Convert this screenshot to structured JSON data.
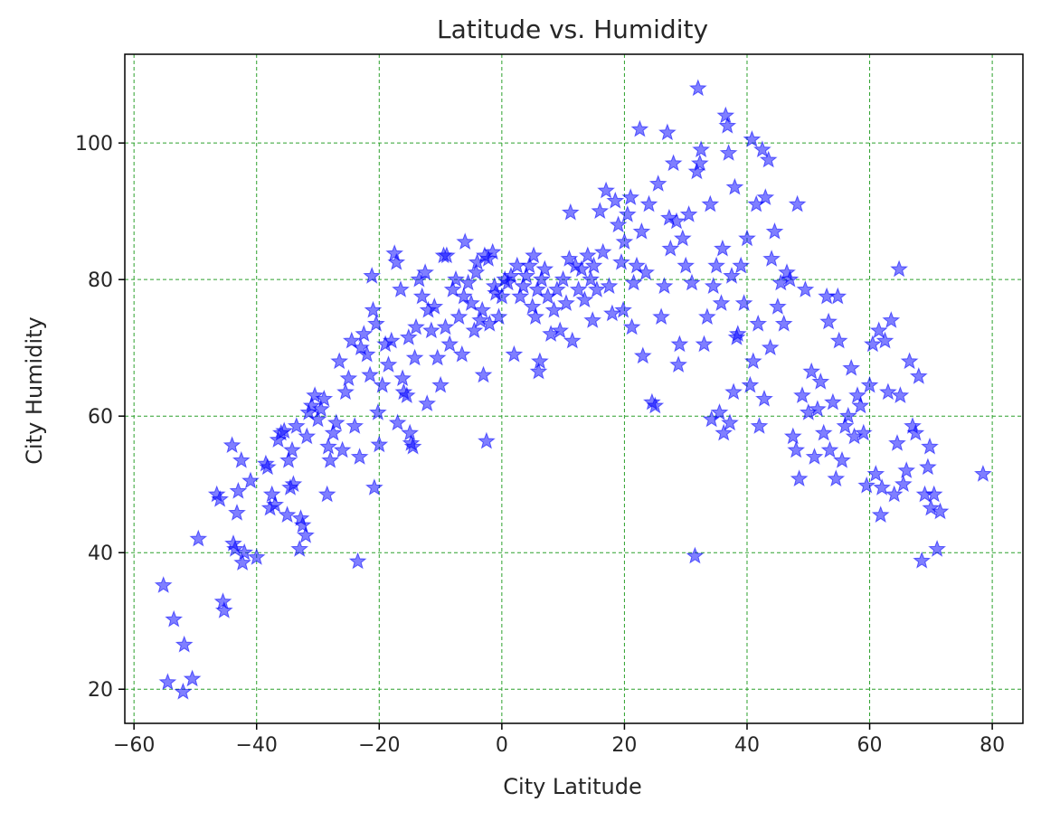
{
  "chart_data": {
    "type": "scatter",
    "title": "Latitude vs. Humidity",
    "xlabel": "City Latitude",
    "ylabel": "City Humidity",
    "xlim": [
      -61.5,
      85
    ],
    "ylim": [
      15,
      113
    ],
    "xticks": [
      -60,
      -40,
      -20,
      0,
      20,
      40,
      60,
      80
    ],
    "yticks": [
      20,
      40,
      60,
      80,
      100
    ],
    "grid": true,
    "marker": "star",
    "colors": {
      "marker": "#0000ff",
      "grid": "#2ca02c",
      "axes": "#000000"
    },
    "points": [
      [
        -55.2,
        35.2
      ],
      [
        -54.5,
        21.0
      ],
      [
        -53.5,
        30.2
      ],
      [
        -52.0,
        19.6
      ],
      [
        -51.8,
        26.5
      ],
      [
        -50.5,
        21.5
      ],
      [
        -49.5,
        42.0
      ],
      [
        -46.5,
        48.5
      ],
      [
        -46.0,
        47.8
      ],
      [
        -45.5,
        32.8
      ],
      [
        -45.3,
        31.5
      ],
      [
        -44.0,
        55.7
      ],
      [
        -43.8,
        41.3
      ],
      [
        -43.5,
        40.5
      ],
      [
        -43.2,
        45.8
      ],
      [
        -43.0,
        49.0
      ],
      [
        -42.5,
        53.5
      ],
      [
        -42.3,
        38.5
      ],
      [
        -42.0,
        40.0
      ],
      [
        -41.0,
        50.5
      ],
      [
        -40.0,
        39.3
      ],
      [
        -38.5,
        53.0
      ],
      [
        -38.2,
        52.5
      ],
      [
        -37.8,
        46.5
      ],
      [
        -37.5,
        48.5
      ],
      [
        -37.0,
        47.0
      ],
      [
        -36.5,
        56.5
      ],
      [
        -36.0,
        57.5
      ],
      [
        -35.5,
        57.8
      ],
      [
        -35.0,
        45.5
      ],
      [
        -34.8,
        53.5
      ],
      [
        -34.5,
        49.5
      ],
      [
        -34.2,
        55.0
      ],
      [
        -34.0,
        50.0
      ],
      [
        -33.5,
        58.5
      ],
      [
        -33.0,
        40.5
      ],
      [
        -32.8,
        45.0
      ],
      [
        -32.5,
        44.0
      ],
      [
        -32.0,
        42.5
      ],
      [
        -31.8,
        57.0
      ],
      [
        -31.5,
        60.5
      ],
      [
        -31.0,
        61.5
      ],
      [
        -30.5,
        63.0
      ],
      [
        -30.0,
        59.5
      ],
      [
        -29.5,
        61.0
      ],
      [
        -29.0,
        62.5
      ],
      [
        -28.5,
        48.5
      ],
      [
        -28.3,
        55.5
      ],
      [
        -28.0,
        53.5
      ],
      [
        -27.5,
        57.5
      ],
      [
        -27.0,
        59.0
      ],
      [
        -26.5,
        68.0
      ],
      [
        -26.0,
        55.0
      ],
      [
        -25.5,
        63.5
      ],
      [
        -25.0,
        65.5
      ],
      [
        -24.5,
        71.0
      ],
      [
        -24.0,
        58.5
      ],
      [
        -23.5,
        38.7
      ],
      [
        -23.2,
        54.0
      ],
      [
        -23.0,
        70.0
      ],
      [
        -22.5,
        72.0
      ],
      [
        -22.0,
        69.0
      ],
      [
        -21.5,
        66.0
      ],
      [
        -21.2,
        80.5
      ],
      [
        -21.0,
        75.5
      ],
      [
        -20.8,
        49.5
      ],
      [
        -20.5,
        73.5
      ],
      [
        -20.2,
        60.5
      ],
      [
        -20.0,
        55.8
      ],
      [
        -19.5,
        64.5
      ],
      [
        -19.0,
        70.5
      ],
      [
        -18.5,
        67.5
      ],
      [
        -18.0,
        71.0
      ],
      [
        -17.5,
        83.8
      ],
      [
        -17.2,
        82.5
      ],
      [
        -17.0,
        59.0
      ],
      [
        -16.5,
        78.5
      ],
      [
        -16.2,
        65.5
      ],
      [
        -16.0,
        63.5
      ],
      [
        -15.5,
        63.0
      ],
      [
        -15.2,
        71.5
      ],
      [
        -15.0,
        57.5
      ],
      [
        -14.8,
        56.0
      ],
      [
        -14.5,
        55.5
      ],
      [
        -14.2,
        68.5
      ],
      [
        -14.0,
        73.0
      ],
      [
        -13.5,
        80.0
      ],
      [
        -13.0,
        77.5
      ],
      [
        -12.5,
        81.0
      ],
      [
        -12.2,
        61.8
      ],
      [
        -12.0,
        75.5
      ],
      [
        -11.5,
        72.5
      ],
      [
        -11.0,
        76.0
      ],
      [
        -10.5,
        68.5
      ],
      [
        -10.0,
        64.5
      ],
      [
        -9.5,
        83.5
      ],
      [
        -9.2,
        73.0
      ],
      [
        -9.0,
        83.5
      ],
      [
        -8.5,
        70.5
      ],
      [
        -8.0,
        78.5
      ],
      [
        -7.5,
        80.0
      ],
      [
        -7.0,
        74.5
      ],
      [
        -6.5,
        69.0
      ],
      [
        -6.2,
        77.5
      ],
      [
        -6.0,
        85.5
      ],
      [
        -5.5,
        79.5
      ],
      [
        -5.0,
        76.5
      ],
      [
        -4.5,
        72.5
      ],
      [
        -4.2,
        81.0
      ],
      [
        -4.0,
        82.5
      ],
      [
        -3.5,
        74.0
      ],
      [
        -3.2,
        75.5
      ],
      [
        -3.0,
        66.0
      ],
      [
        -2.8,
        83.5
      ],
      [
        -2.5,
        56.3
      ],
      [
        -2.2,
        83.0
      ],
      [
        -2.0,
        73.5
      ],
      [
        -1.5,
        84.0
      ],
      [
        -1.2,
        79.0
      ],
      [
        -1.0,
        78.0
      ],
      [
        -0.5,
        74.5
      ],
      [
        0.0,
        77.5
      ],
      [
        0.5,
        80.0
      ],
      [
        1.0,
        79.5
      ],
      [
        1.5,
        80.5
      ],
      [
        2.0,
        69.0
      ],
      [
        2.5,
        82.0
      ],
      [
        3.0,
        77.5
      ],
      [
        3.5,
        79.0
      ],
      [
        4.0,
        80.5
      ],
      [
        4.5,
        82.0
      ],
      [
        5.0,
        76.0
      ],
      [
        5.2,
        83.5
      ],
      [
        5.5,
        74.5
      ],
      [
        5.8,
        78.5
      ],
      [
        6.0,
        66.5
      ],
      [
        6.2,
        68.0
      ],
      [
        6.5,
        80.0
      ],
      [
        7.0,
        81.5
      ],
      [
        7.5,
        77.5
      ],
      [
        8.0,
        72.0
      ],
      [
        8.5,
        75.5
      ],
      [
        9.0,
        78.5
      ],
      [
        9.5,
        72.5
      ],
      [
        10.0,
        80.0
      ],
      [
        10.5,
        76.5
      ],
      [
        11.0,
        83.0
      ],
      [
        11.2,
        89.8
      ],
      [
        11.5,
        71.0
      ],
      [
        12.0,
        82.0
      ],
      [
        12.5,
        78.5
      ],
      [
        13.0,
        81.5
      ],
      [
        13.5,
        77.0
      ],
      [
        14.0,
        83.5
      ],
      [
        14.5,
        80.0
      ],
      [
        14.8,
        74.0
      ],
      [
        15.0,
        82.0
      ],
      [
        15.5,
        78.5
      ],
      [
        16.0,
        90.0
      ],
      [
        16.5,
        84.0
      ],
      [
        17.0,
        93.0
      ],
      [
        17.5,
        79.0
      ],
      [
        18.0,
        75.0
      ],
      [
        18.5,
        91.5
      ],
      [
        19.0,
        88.0
      ],
      [
        19.5,
        82.5
      ],
      [
        19.8,
        75.5
      ],
      [
        20.0,
        85.5
      ],
      [
        20.5,
        89.5
      ],
      [
        21.0,
        92.0
      ],
      [
        21.2,
        73.0
      ],
      [
        21.5,
        79.5
      ],
      [
        22.0,
        82.0
      ],
      [
        22.5,
        102.0
      ],
      [
        22.8,
        87.0
      ],
      [
        23.0,
        68.8
      ],
      [
        23.5,
        81.0
      ],
      [
        24.0,
        91.0
      ],
      [
        24.5,
        62.0
      ],
      [
        25.0,
        61.5
      ],
      [
        25.5,
        94.0
      ],
      [
        26.0,
        74.5
      ],
      [
        26.5,
        79.0
      ],
      [
        27.0,
        101.5
      ],
      [
        27.3,
        89.0
      ],
      [
        27.5,
        84.5
      ],
      [
        28.0,
        97.0
      ],
      [
        28.5,
        88.5
      ],
      [
        28.8,
        67.5
      ],
      [
        29.0,
        70.5
      ],
      [
        29.5,
        86.0
      ],
      [
        30.0,
        82.0
      ],
      [
        30.5,
        89.5
      ],
      [
        31.0,
        79.5
      ],
      [
        31.5,
        39.5
      ],
      [
        31.8,
        95.8
      ],
      [
        32.0,
        108.0
      ],
      [
        32.3,
        97.0
      ],
      [
        32.5,
        99.0
      ],
      [
        33.0,
        70.5
      ],
      [
        33.5,
        74.5
      ],
      [
        34.0,
        91.0
      ],
      [
        34.2,
        59.5
      ],
      [
        34.5,
        79.0
      ],
      [
        35.0,
        82.0
      ],
      [
        35.5,
        60.5
      ],
      [
        35.8,
        76.5
      ],
      [
        36.0,
        84.5
      ],
      [
        36.2,
        57.5
      ],
      [
        36.5,
        104.0
      ],
      [
        36.8,
        102.5
      ],
      [
        37.0,
        98.5
      ],
      [
        37.2,
        59.0
      ],
      [
        37.5,
        80.5
      ],
      [
        37.8,
        63.5
      ],
      [
        38.0,
        93.5
      ],
      [
        38.3,
        71.5
      ],
      [
        38.5,
        72.0
      ],
      [
        39.0,
        82.0
      ],
      [
        39.5,
        76.5
      ],
      [
        40.0,
        86.0
      ],
      [
        40.5,
        64.5
      ],
      [
        40.8,
        100.5
      ],
      [
        41.0,
        68.0
      ],
      [
        41.5,
        91.0
      ],
      [
        41.8,
        73.5
      ],
      [
        42.0,
        58.5
      ],
      [
        42.5,
        99.0
      ],
      [
        42.8,
        62.5
      ],
      [
        43.0,
        92.0
      ],
      [
        43.5,
        97.5
      ],
      [
        43.8,
        70.0
      ],
      [
        44.0,
        83.0
      ],
      [
        44.5,
        87.0
      ],
      [
        45.0,
        76.0
      ],
      [
        45.5,
        79.5
      ],
      [
        46.0,
        73.5
      ],
      [
        46.5,
        81.0
      ],
      [
        47.0,
        80.0
      ],
      [
        47.5,
        57.0
      ],
      [
        48.0,
        55.0
      ],
      [
        48.2,
        91.0
      ],
      [
        48.5,
        50.8
      ],
      [
        49.0,
        63.0
      ],
      [
        49.5,
        78.5
      ],
      [
        50.0,
        60.5
      ],
      [
        50.5,
        66.5
      ],
      [
        51.0,
        54.0
      ],
      [
        51.5,
        61.0
      ],
      [
        52.0,
        65.0
      ],
      [
        52.5,
        57.5
      ],
      [
        53.0,
        77.5
      ],
      [
        53.3,
        73.8
      ],
      [
        53.5,
        55.0
      ],
      [
        54.0,
        62.0
      ],
      [
        54.5,
        50.8
      ],
      [
        54.8,
        77.5
      ],
      [
        55.0,
        71.0
      ],
      [
        55.5,
        53.5
      ],
      [
        56.0,
        58.5
      ],
      [
        56.5,
        60.0
      ],
      [
        57.0,
        67.0
      ],
      [
        57.5,
        57.0
      ],
      [
        58.0,
        63.0
      ],
      [
        58.5,
        61.5
      ],
      [
        59.0,
        57.5
      ],
      [
        59.5,
        49.8
      ],
      [
        60.0,
        64.5
      ],
      [
        60.5,
        70.5
      ],
      [
        61.0,
        51.5
      ],
      [
        61.5,
        72.5
      ],
      [
        61.8,
        45.5
      ],
      [
        62.0,
        49.5
      ],
      [
        62.5,
        71.0
      ],
      [
        63.0,
        63.5
      ],
      [
        63.5,
        74.0
      ],
      [
        64.0,
        48.5
      ],
      [
        64.5,
        56.0
      ],
      [
        64.8,
        81.5
      ],
      [
        65.0,
        63.0
      ],
      [
        65.5,
        50.0
      ],
      [
        66.0,
        52.0
      ],
      [
        66.5,
        68.0
      ],
      [
        67.0,
        58.5
      ],
      [
        67.5,
        57.5
      ],
      [
        68.0,
        65.8
      ],
      [
        68.5,
        38.8
      ],
      [
        69.0,
        48.5
      ],
      [
        69.5,
        52.5
      ],
      [
        69.8,
        55.5
      ],
      [
        70.0,
        46.5
      ],
      [
        70.5,
        48.5
      ],
      [
        71.0,
        40.5
      ],
      [
        71.5,
        46.0
      ],
      [
        78.5,
        51.5
      ]
    ]
  }
}
